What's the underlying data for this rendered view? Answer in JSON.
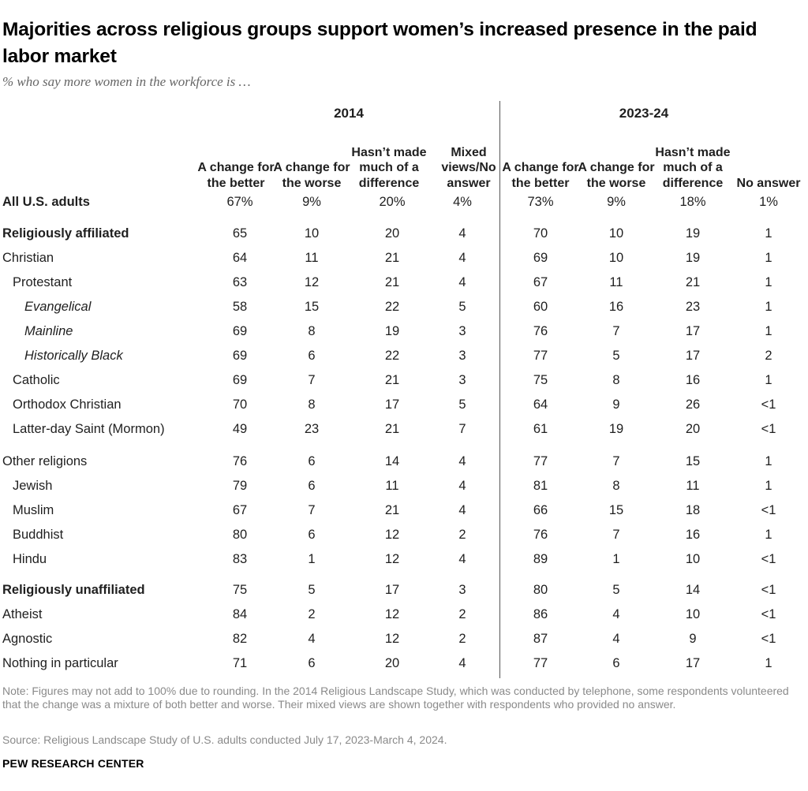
{
  "title": "Majorities across religious groups support women’s increased presence in the paid labor market",
  "subtitle": "% who say more women in the workforce is …",
  "chart_data": {
    "type": "table",
    "groups": [
      "2014",
      "2023-24"
    ],
    "columns": [
      "A change for the better",
      "A change for the worse",
      "Hasn’t made much of a difference",
      "Mixed views/No answer",
      "A change for the better",
      "A change for the worse",
      "Hasn’t made much of a difference",
      "No answer"
    ],
    "rows": [
      {
        "label": "All U.S. adults",
        "style": "bold",
        "indent": 0,
        "values": [
          "67%",
          "9%",
          "20%",
          "4%",
          "73%",
          "9%",
          "18%",
          "1%"
        ]
      },
      {
        "label": "Religiously affiliated",
        "style": "bold",
        "indent": 0,
        "values": [
          "65",
          "10",
          "20",
          "4",
          "70",
          "10",
          "19",
          "1"
        ]
      },
      {
        "label": "Christian",
        "style": "normal",
        "indent": 0,
        "values": [
          "64",
          "11",
          "21",
          "4",
          "69",
          "10",
          "19",
          "1"
        ]
      },
      {
        "label": "Protestant",
        "style": "normal",
        "indent": 1,
        "values": [
          "63",
          "12",
          "21",
          "4",
          "67",
          "11",
          "21",
          "1"
        ]
      },
      {
        "label": "Evangelical",
        "style": "italic",
        "indent": 2,
        "values": [
          "58",
          "15",
          "22",
          "5",
          "60",
          "16",
          "23",
          "1"
        ]
      },
      {
        "label": "Mainline",
        "style": "italic",
        "indent": 2,
        "values": [
          "69",
          "8",
          "19",
          "3",
          "76",
          "7",
          "17",
          "1"
        ]
      },
      {
        "label": "Historically Black",
        "style": "italic",
        "indent": 2,
        "values": [
          "69",
          "6",
          "22",
          "3",
          "77",
          "5",
          "17",
          "2"
        ]
      },
      {
        "label": "Catholic",
        "style": "normal",
        "indent": 1,
        "values": [
          "69",
          "7",
          "21",
          "3",
          "75",
          "8",
          "16",
          "1"
        ]
      },
      {
        "label": "Orthodox Christian",
        "style": "normal",
        "indent": 1,
        "values": [
          "70",
          "8",
          "17",
          "5",
          "64",
          "9",
          "26",
          "<1"
        ]
      },
      {
        "label": "Latter-day Saint (Mormon)",
        "style": "normal",
        "indent": 1,
        "values": [
          "49",
          "23",
          "21",
          "7",
          "61",
          "19",
          "20",
          "<1"
        ]
      },
      {
        "label": "Other religions",
        "style": "normal",
        "indent": 0,
        "values": [
          "76",
          "6",
          "14",
          "4",
          "77",
          "7",
          "15",
          "1"
        ]
      },
      {
        "label": "Jewish",
        "style": "normal",
        "indent": 1,
        "values": [
          "79",
          "6",
          "11",
          "4",
          "81",
          "8",
          "11",
          "1"
        ]
      },
      {
        "label": "Muslim",
        "style": "normal",
        "indent": 1,
        "values": [
          "67",
          "7",
          "21",
          "4",
          "66",
          "15",
          "18",
          "<1"
        ]
      },
      {
        "label": "Buddhist",
        "style": "normal",
        "indent": 1,
        "values": [
          "80",
          "6",
          "12",
          "2",
          "76",
          "7",
          "16",
          "1"
        ]
      },
      {
        "label": "Hindu",
        "style": "normal",
        "indent": 1,
        "values": [
          "83",
          "1",
          "12",
          "4",
          "89",
          "1",
          "10",
          "<1"
        ]
      },
      {
        "label": "Religiously unaffiliated",
        "style": "bold",
        "indent": 0,
        "values": [
          "75",
          "5",
          "17",
          "3",
          "80",
          "5",
          "14",
          "<1"
        ]
      },
      {
        "label": "Atheist",
        "style": "normal",
        "indent": 0,
        "values": [
          "84",
          "2",
          "12",
          "2",
          "86",
          "4",
          "10",
          "<1"
        ]
      },
      {
        "label": "Agnostic",
        "style": "normal",
        "indent": 0,
        "values": [
          "82",
          "4",
          "12",
          "2",
          "87",
          "4",
          "9",
          "<1"
        ]
      },
      {
        "label": "Nothing in particular",
        "style": "normal",
        "indent": 0,
        "values": [
          "71",
          "6",
          "20",
          "4",
          "77",
          "6",
          "17",
          "1"
        ]
      }
    ]
  },
  "note": "Note: Figures may not add to 100% due to rounding. In the 2014 Religious Landscape Study, which was conducted by telephone, some respondents volunteered that the change was a mixture of both better and worse. Their mixed views are shown together with respondents who provided no answer.",
  "source": "Source: Religious Landscape Study of U.S. adults conducted July 17, 2023-March 4, 2024.",
  "brand": "PEW RESEARCH CENTER"
}
